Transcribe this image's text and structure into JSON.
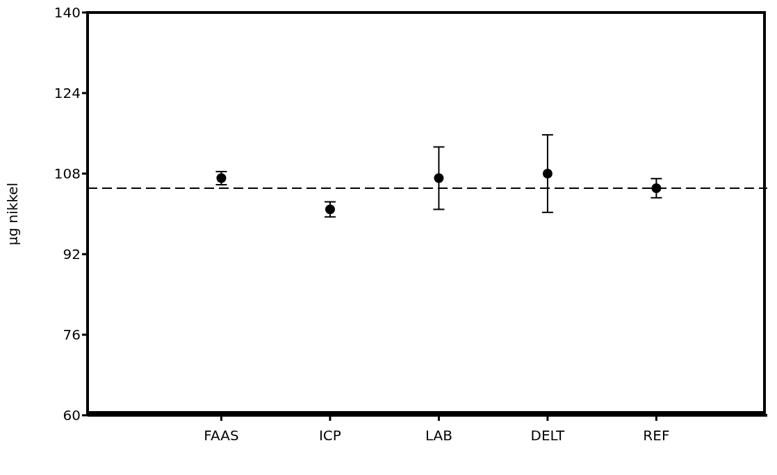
{
  "chart_data": {
    "type": "scatter",
    "ylabel": "µg nikkel",
    "categories": [
      "FAAS",
      "ICP",
      "LAB",
      "DELT",
      "REF"
    ],
    "series": [
      {
        "color": "#000000",
        "values": [
          107.1,
          100.9,
          107.1,
          108.0,
          105.1
        ],
        "errors": [
          1.3,
          1.5,
          6.2,
          7.7,
          1.9
        ]
      }
    ],
    "ylim": [
      60,
      140
    ],
    "yticks": [
      60,
      76,
      92,
      108,
      124,
      140
    ],
    "ref_lines": [
      {
        "axis": "y",
        "value": 105.1,
        "line_style": "dashed",
        "color": "#000000"
      }
    ],
    "marker": "circle",
    "grid": false,
    "legend": false
  }
}
